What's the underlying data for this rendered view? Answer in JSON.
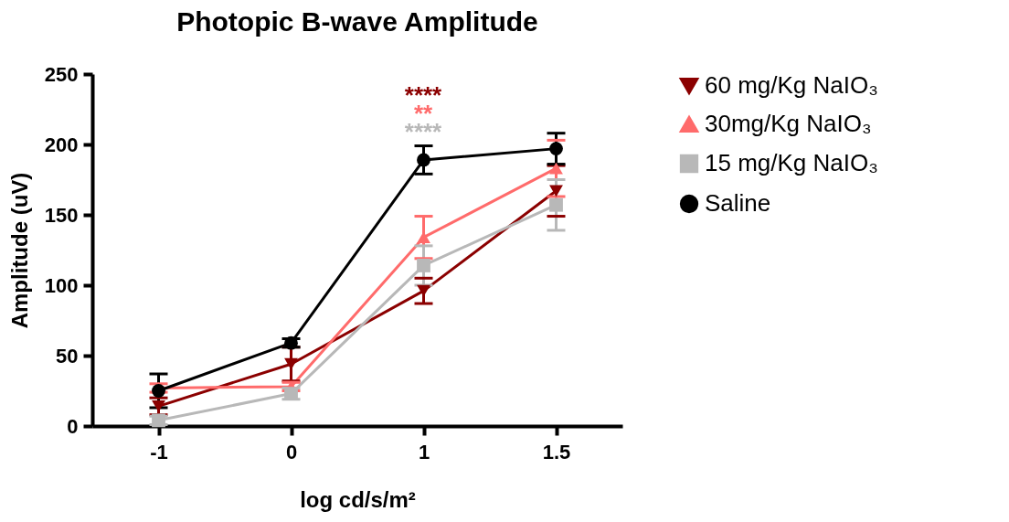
{
  "chart_data": {
    "type": "line",
    "title": "Photopic B-wave Amplitude",
    "xlabel": "log cd/s/m²",
    "ylabel": "Amplitude (uV)",
    "categories": [
      "-1",
      "0",
      "1",
      "1.5"
    ],
    "series": [
      {
        "name": "60 mg/Kg NaIO₃",
        "color": "#8b0000",
        "marker": "triangle-down",
        "values": [
          14,
          44,
          96,
          167
        ],
        "errors": [
          6,
          12,
          9,
          18
        ]
      },
      {
        "name": "30mg/Kg NaIO₃",
        "color": "#ff6b6b",
        "marker": "triangle-up",
        "values": [
          27,
          28,
          134,
          183
        ],
        "errors": [
          3,
          3,
          15,
          20
        ]
      },
      {
        "name": "15 mg/Kg NaIO₃",
        "color": "#b8b8b8",
        "marker": "square",
        "values": [
          4,
          23,
          114,
          157
        ],
        "errors": [
          3,
          4,
          14,
          18
        ]
      },
      {
        "name": "Saline",
        "color": "#000000",
        "marker": "circle",
        "values": [
          25,
          59,
          189,
          197
        ],
        "errors": [
          12,
          3,
          10,
          11
        ]
      }
    ],
    "annotations": [
      "****",
      "**",
      "****"
    ],
    "ylim": [
      0,
      250
    ],
    "yticks": [
      0,
      50,
      100,
      150,
      200,
      250
    ],
    "grid": false,
    "legend": "right",
    "line_style": "solid"
  }
}
